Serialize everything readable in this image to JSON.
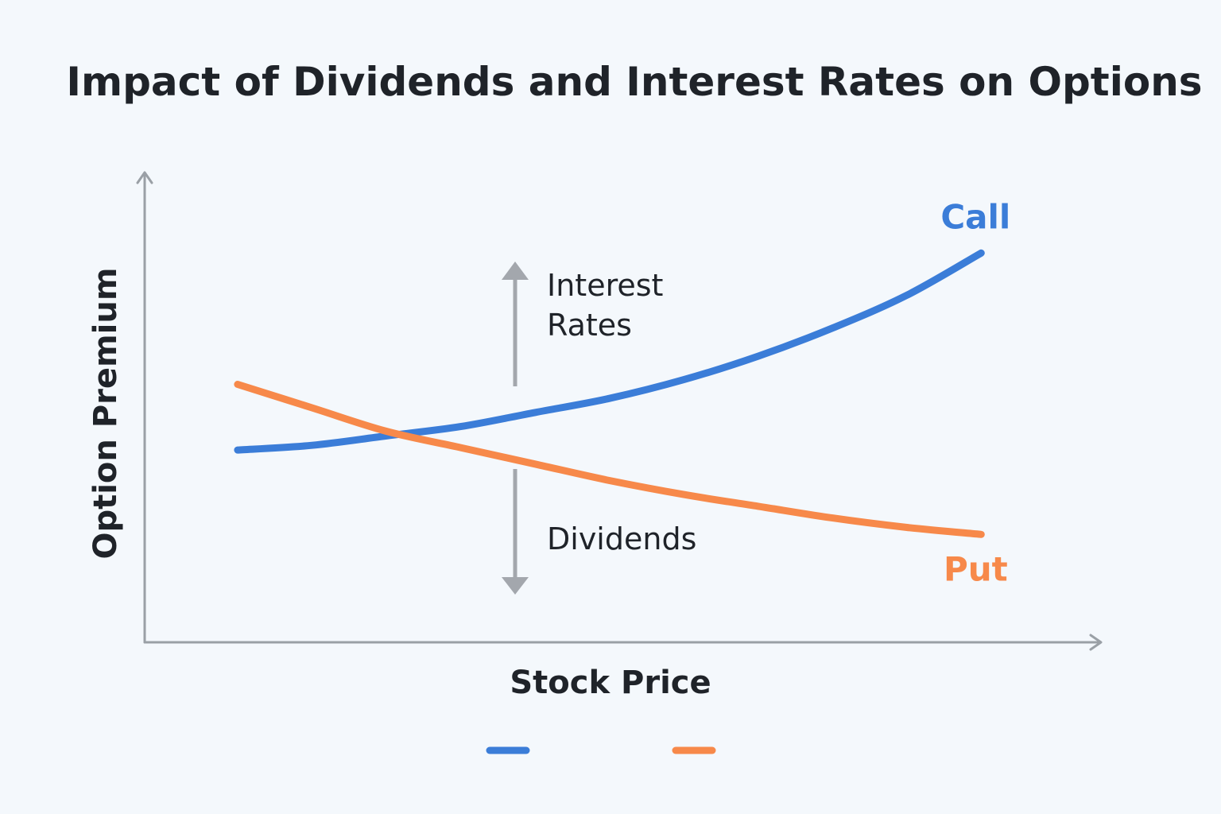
{
  "chart_data": {
    "type": "line",
    "title": "Impact of Dividends and Interest Rates on Options",
    "xlabel": "Stock Price",
    "ylabel": "Option Premium",
    "x": [
      0,
      1,
      2,
      3,
      4,
      5,
      6,
      7,
      8,
      9,
      10
    ],
    "ylim": [
      0,
      10
    ],
    "xlim": [
      -1.25,
      11.6
    ],
    "series": [
      {
        "name": "Call",
        "color": "#3b7dd8",
        "values": [
          4.1,
          4.2,
          4.4,
          4.6,
          4.9,
          5.2,
          5.6,
          6.1,
          6.7,
          7.4,
          8.3
        ]
      },
      {
        "name": "Put",
        "color": "#f7894a",
        "values": [
          5.5,
          5.0,
          4.5,
          4.15,
          3.8,
          3.45,
          3.15,
          2.9,
          2.65,
          2.45,
          2.3
        ]
      }
    ],
    "annotations": {
      "up_label": [
        "Interest",
        "Rates"
      ],
      "down_label": "Dividends"
    },
    "legend": {
      "placement": "bottom",
      "labels": [
        "",
        ""
      ]
    },
    "grid": false
  }
}
